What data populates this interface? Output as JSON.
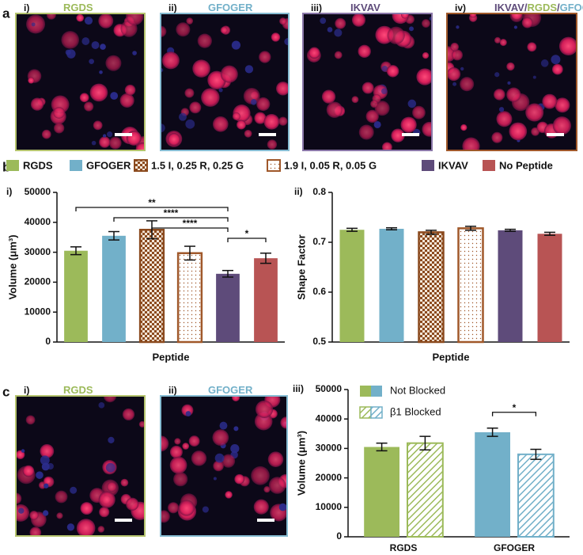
{
  "figure_a": {
    "label": "a",
    "panels": [
      {
        "index": "i)",
        "title": [
          {
            "text": "RGDS",
            "color": "#9cba5a"
          }
        ],
        "border": "#b5c46e"
      },
      {
        "index": "ii)",
        "title": [
          {
            "text": "GFOGER",
            "color": "#72b0c9"
          }
        ],
        "border": "#86bcd2"
      },
      {
        "index": "iii)",
        "title": [
          {
            "text": "IKVAV",
            "color": "#5e4b7a"
          }
        ],
        "border": "#8a77a8"
      },
      {
        "index": "iv)",
        "title": [
          {
            "text": "IKVAV",
            "color": "#5e4b7a"
          },
          {
            "text": "/",
            "color": "#5e4b7a"
          },
          {
            "text": "RGDS",
            "color": "#9cba5a"
          },
          {
            "text": "/",
            "color": "#5e4b7a"
          },
          {
            "text": "GFOGER",
            "color": "#72b0c9"
          }
        ],
        "border": "#a0582a"
      }
    ]
  },
  "figure_b": {
    "label": "b"
  },
  "figure_c": {
    "label": "c",
    "panels": [
      {
        "index": "i)",
        "title": [
          {
            "text": "RGDS",
            "color": "#9cba5a"
          }
        ],
        "border": "#b5c46e"
      },
      {
        "index": "ii)",
        "title": [
          {
            "text": "GFOGER",
            "color": "#72b0c9"
          }
        ],
        "border": "#86bcd2"
      }
    ]
  },
  "chart_data": [
    {
      "type": "bar",
      "panel_label": "i)",
      "ylabel": "Volume (μm³)",
      "xlabel": "Peptide",
      "categories": [
        "RGDS",
        "GFOGER",
        "1.5 I, 0.25 R, 0.25 G",
        "1.9 I, 0.05 R, 0.05 G",
        "IKVAV",
        "No Peptide"
      ],
      "values": [
        30500,
        35500,
        37500,
        29700,
        22800,
        28000
      ],
      "errors": [
        1300,
        1400,
        3000,
        2300,
        1100,
        1700
      ],
      "colors": [
        "#9cba5a",
        "#72b0c9",
        "#8b4a1e",
        "#a0582a",
        "#5e4b7a",
        "#b85454"
      ],
      "patterns": [
        "solid",
        "solid",
        "checker",
        "dots",
        "solid",
        "solid"
      ],
      "ylim": [
        0,
        50000
      ],
      "yticks": [
        0,
        10000,
        20000,
        30000,
        40000,
        50000
      ],
      "brackets": [
        {
          "label": "**",
          "from": 0,
          "to": 4
        },
        {
          "label": "****",
          "from": 1,
          "to": 4
        },
        {
          "label": "****",
          "from": 2,
          "to": 4
        },
        {
          "label": "*",
          "from": 4,
          "to": 5
        }
      ]
    },
    {
      "type": "bar",
      "panel_label": "ii)",
      "ylabel": "Shape Factor",
      "xlabel": "Peptide",
      "values": [
        0.725,
        0.727,
        0.72,
        0.728,
        0.724,
        0.717
      ],
      "errors": [
        0.003,
        0.002,
        0.004,
        0.004,
        0.002,
        0.003
      ],
      "colors": [
        "#9cba5a",
        "#72b0c9",
        "#8b4a1e",
        "#a0582a",
        "#5e4b7a",
        "#b85454"
      ],
      "patterns": [
        "solid",
        "solid",
        "checker",
        "dots",
        "solid",
        "solid"
      ],
      "ylim": [
        0.5,
        0.8
      ],
      "yticks": [
        0.5,
        0.6,
        0.7,
        0.8
      ]
    },
    {
      "type": "grouped_bar",
      "panel_label": "iii)",
      "ylabel": "Volume (μm³)",
      "categories": [
        "RGDS",
        "GFOGER"
      ],
      "colors": [
        "#9cba5a",
        "#72b0c9"
      ],
      "series": [
        {
          "name": "Not Blocked",
          "pattern": "solid",
          "values": [
            30500,
            35500
          ],
          "errors": [
            1300,
            1400
          ]
        },
        {
          "name": "β1 Blocked",
          "pattern": "hatch",
          "values": [
            31800,
            28000
          ],
          "errors": [
            2300,
            1700
          ]
        }
      ],
      "ylim": [
        0,
        50000
      ],
      "yticks": [
        0,
        10000,
        20000,
        30000,
        40000,
        50000
      ],
      "brackets": [
        {
          "label": "*",
          "category": 1
        }
      ]
    }
  ]
}
